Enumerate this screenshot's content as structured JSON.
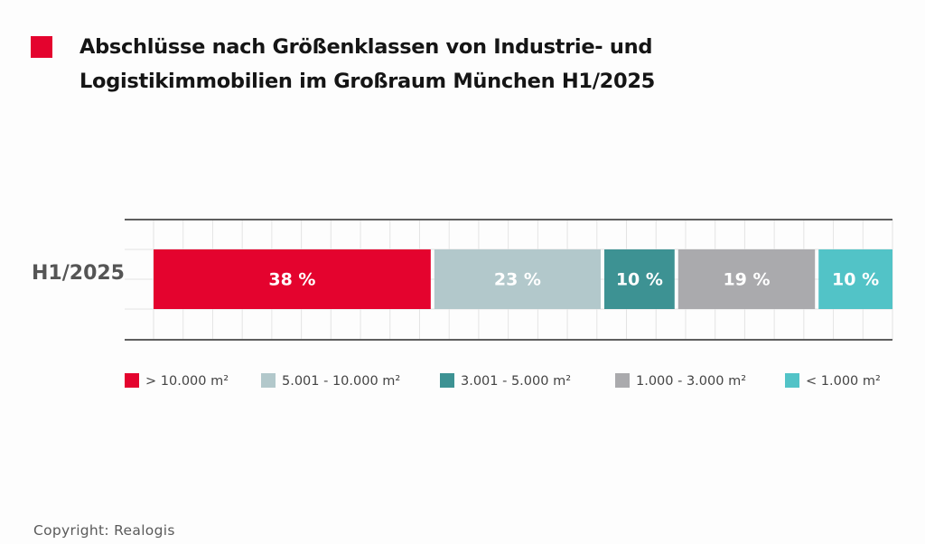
{
  "title": {
    "line1": "Abschlüsse nach Größenklassen von Industrie- und",
    "line2": "Logistikimmobilien im Großraum München H1/2025"
  },
  "colors": {
    "title_marker": "#e4032e"
  },
  "chart_data": {
    "type": "bar",
    "orientation": "horizontal",
    "stacked": true,
    "categories": [
      "H1/2025"
    ],
    "series": [
      {
        "name": "> 10.000 m²",
        "values": [
          38
        ],
        "label": "38 %",
        "color": "#e4032e"
      },
      {
        "name": "5.001 - 10.000 m²",
        "values": [
          23
        ],
        "label": "23 %",
        "color": "#b2c8cb"
      },
      {
        "name": "3.001 - 5.000 m²",
        "values": [
          10
        ],
        "label": "10 %",
        "color": "#3d9293"
      },
      {
        "name": "1.000 - 3.000 m²",
        "values": [
          19
        ],
        "label": "19 %",
        "color": "#aaaaad"
      },
      {
        "name": "< 1.000 m²",
        "values": [
          10
        ],
        "label": "10 %",
        "color": "#52c3c7"
      }
    ],
    "xlim": [
      0,
      100
    ],
    "grid": true,
    "legend_position": "bottom"
  },
  "footer": {
    "copyright": "Copyright: Realogis"
  }
}
